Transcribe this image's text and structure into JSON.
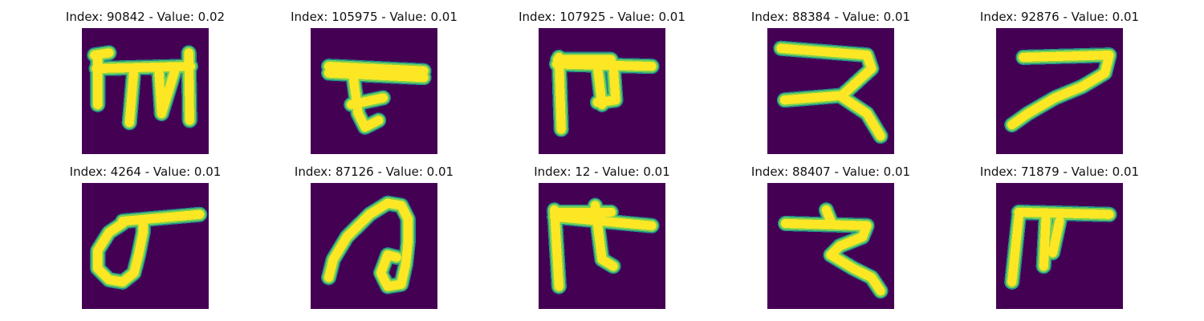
{
  "figure": {
    "background_color": "#440154",
    "halo_color": "#21918c",
    "mid_color": "#7ad151",
    "stroke_color": "#fde725",
    "panels": [
      {
        "title": "Index: 90842 - Value: 0.02"
      },
      {
        "title": "Index: 105975 - Value: 0.01"
      },
      {
        "title": "Index: 107925 - Value: 0.01"
      },
      {
        "title": "Index: 88384 - Value: 0.01"
      },
      {
        "title": "Index: 92876 - Value: 0.01"
      },
      {
        "title": "Index: 4264 - Value: 0.01"
      },
      {
        "title": "Index: 87126 - Value: 0.01"
      },
      {
        "title": "Index: 12 - Value: 0.01"
      },
      {
        "title": "Index: 88407 - Value: 0.01"
      },
      {
        "title": "Index: 71879 - Value: 0.01"
      }
    ]
  }
}
